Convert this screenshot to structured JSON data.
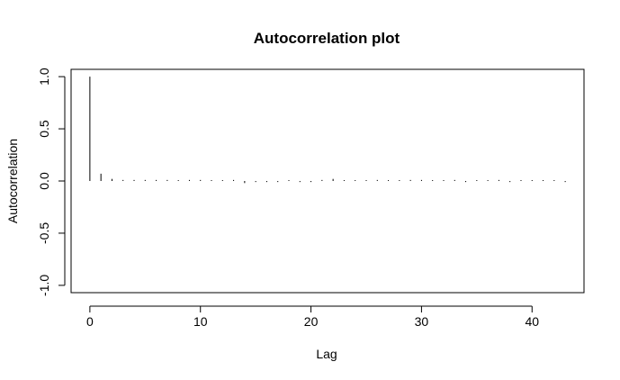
{
  "chart_data": {
    "type": "bar",
    "title": "Autocorrelation plot",
    "xlabel": "Lag",
    "ylabel": "Autocorrelation",
    "xlim": [
      -1.7,
      44.7
    ],
    "ylim": [
      -1.07,
      1.07
    ],
    "x_ticks": [
      0,
      10,
      20,
      30,
      40
    ],
    "x_tick_labels": [
      "0",
      "10",
      "20",
      "30",
      "40"
    ],
    "y_ticks": [
      -1.0,
      -0.5,
      0.0,
      0.5,
      1.0
    ],
    "y_tick_labels": [
      "-1.0",
      "-0.5",
      "0.0",
      "0.5",
      "1.0"
    ],
    "grid": false,
    "lags": [
      0,
      1,
      2,
      3,
      4,
      5,
      6,
      7,
      8,
      9,
      10,
      11,
      12,
      13,
      14,
      15,
      16,
      17,
      18,
      19,
      20,
      21,
      22,
      23,
      24,
      25,
      26,
      27,
      28,
      29,
      30,
      31,
      32,
      33,
      34,
      35,
      36,
      37,
      38,
      39,
      40,
      41,
      42,
      43
    ],
    "values": [
      1.0,
      0.07,
      0.02,
      0.01,
      0.01,
      0.01,
      0.01,
      0.01,
      0.0,
      0.01,
      0.01,
      0.0,
      0.0,
      0.01,
      -0.02,
      -0.01,
      -0.01,
      -0.01,
      0.0,
      -0.01,
      -0.01,
      0.01,
      0.02,
      0.0,
      0.0,
      0.0,
      0.01,
      0.0,
      0.0,
      0.01,
      0.01,
      0.0,
      0.0,
      0.01,
      -0.01,
      0.0,
      0.0,
      0.01,
      -0.01,
      0.0,
      0.0,
      0.0,
      0.0,
      -0.01
    ]
  }
}
